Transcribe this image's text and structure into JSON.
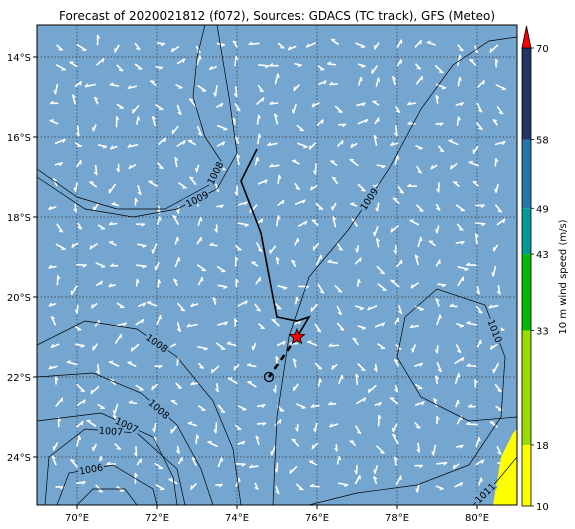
{
  "title": "Forecast of 2020021812 (f072), Sources: GDACS (TC track), GFS (Meteo)",
  "map": {
    "lon_range": [
      69,
      81
    ],
    "lat_range": [
      -25.2,
      -13.2
    ],
    "ocean_color": "#74a6cf",
    "x_ticks": [
      {
        "value": 70,
        "label": "70°E"
      },
      {
        "value": 72,
        "label": "72°E"
      },
      {
        "value": 74,
        "label": "74°E"
      },
      {
        "value": 76,
        "label": "76°E"
      },
      {
        "value": 78,
        "label": "78°E"
      },
      {
        "value": 80,
        "label": "80°E"
      }
    ],
    "y_ticks": [
      {
        "value": -14,
        "label": "14°S"
      },
      {
        "value": -16,
        "label": "16°S"
      },
      {
        "value": -18,
        "label": "18°S"
      },
      {
        "value": -20,
        "label": "20°S"
      },
      {
        "value": -22,
        "label": "22°S"
      },
      {
        "value": -24,
        "label": "24°S"
      }
    ],
    "gridlines": true
  },
  "isobars": [
    {
      "value": 1008,
      "label": "1008",
      "points": [
        [
          73.2,
          -13.2
        ],
        [
          73.0,
          -14.0
        ],
        [
          72.9,
          -15.0
        ],
        [
          73.2,
          -16.0
        ],
        [
          73.6,
          -16.6
        ],
        [
          73.3,
          -17.2
        ],
        [
          72.2,
          -17.8
        ],
        [
          71.0,
          -17.8
        ],
        [
          70.0,
          -17.5
        ],
        [
          69.0,
          -16.8
        ]
      ]
    },
    {
      "value": 1009,
      "label": "1009",
      "points": [
        [
          69.0,
          -17.0
        ],
        [
          70.2,
          -17.8
        ],
        [
          71.4,
          -18.0
        ],
        [
          72.5,
          -17.8
        ],
        [
          73.5,
          -17.3
        ],
        [
          74.0,
          -16.4
        ],
        [
          73.8,
          -15.0
        ],
        [
          73.5,
          -13.2
        ]
      ]
    },
    {
      "value": 1009,
      "label": "1009",
      "points": [
        [
          74.9,
          -25.2
        ],
        [
          75.0,
          -23.0
        ],
        [
          75.3,
          -21.0
        ],
        [
          75.8,
          -19.5
        ],
        [
          76.8,
          -18.3
        ],
        [
          77.8,
          -16.8
        ],
        [
          78.6,
          -15.3
        ],
        [
          79.4,
          -14.2
        ],
        [
          80.3,
          -13.6
        ],
        [
          81.0,
          -13.5
        ]
      ]
    },
    {
      "value": 1008,
      "label": "1008",
      "points": [
        [
          69.0,
          -21.2
        ],
        [
          70.2,
          -20.6
        ],
        [
          71.5,
          -20.8
        ],
        [
          72.5,
          -21.5
        ],
        [
          73.4,
          -22.6
        ],
        [
          73.9,
          -23.8
        ],
        [
          74.1,
          -25.2
        ]
      ]
    },
    {
      "value": 1008,
      "label": "1008",
      "points": [
        [
          69.0,
          -22.0
        ],
        [
          70.4,
          -21.9
        ],
        [
          71.6,
          -22.4
        ],
        [
          72.5,
          -23.2
        ],
        [
          73.1,
          -24.3
        ],
        [
          73.4,
          -25.2
        ]
      ]
    },
    {
      "value": 1007,
      "label": "1007",
      "points": [
        [
          69.2,
          -25.2
        ],
        [
          69.3,
          -24.0
        ],
        [
          70.2,
          -23.3
        ],
        [
          71.5,
          -23.4
        ],
        [
          72.5,
          -24.3
        ],
        [
          72.7,
          -25.2
        ]
      ]
    },
    {
      "value": 1007,
      "label": "1007",
      "points": [
        [
          69.0,
          -23.1
        ],
        [
          70.6,
          -22.9
        ],
        [
          71.9,
          -23.5
        ],
        [
          72.4,
          -24.5
        ],
        [
          72.5,
          -25.2
        ]
      ]
    },
    {
      "value": 1006,
      "label": "1006",
      "points": [
        [
          69.5,
          -25.2
        ],
        [
          69.8,
          -24.4
        ],
        [
          70.9,
          -24.2
        ],
        [
          71.9,
          -24.8
        ],
        [
          72.0,
          -25.2
        ]
      ]
    },
    {
      "value": 1006,
      "label": "",
      "points": [
        [
          70.0,
          -25.2
        ],
        [
          70.4,
          -24.8
        ],
        [
          71.2,
          -24.8
        ],
        [
          71.5,
          -25.2
        ]
      ]
    },
    {
      "value": 1010,
      "label": "1010",
      "points": [
        [
          75.8,
          -25.2
        ],
        [
          77.0,
          -24.9
        ],
        [
          78.5,
          -24.7
        ],
        [
          79.8,
          -24.2
        ],
        [
          80.6,
          -23.0
        ],
        [
          80.7,
          -21.5
        ],
        [
          80.2,
          -20.2
        ],
        [
          79.0,
          -19.8
        ],
        [
          78.2,
          -20.5
        ],
        [
          78.0,
          -21.5
        ],
        [
          78.6,
          -22.5
        ],
        [
          79.8,
          -23.1
        ],
        [
          81.0,
          -23.0
        ]
      ]
    },
    {
      "value": 1011,
      "label": "1011",
      "points": [
        [
          79.9,
          -25.2
        ],
        [
          80.5,
          -24.6
        ],
        [
          81.0,
          -24.0
        ]
      ]
    }
  ],
  "track": {
    "past": [
      [
        74.5,
        -16.3
      ],
      [
        74.1,
        -17.1
      ],
      [
        74.6,
        -18.4
      ],
      [
        74.9,
        -20.0
      ],
      [
        75.0,
        -20.5
      ],
      [
        75.5,
        -20.6
      ],
      [
        75.8,
        -20.5
      ],
      [
        75.5,
        -21.0
      ]
    ],
    "forecast": [
      [
        75.5,
        -21.0
      ],
      [
        74.8,
        -22.0
      ]
    ],
    "current_position": [
      75.5,
      -21.0
    ],
    "forecast_end": [
      74.8,
      -22.0
    ],
    "track_color": "#000000",
    "marker_color": "#ff0000"
  },
  "colorbar": {
    "title": "10 m wind speed (m/s)",
    "ticks": [
      "10",
      "18",
      "33",
      "43",
      "49",
      "58",
      "70"
    ],
    "segments": [
      {
        "from": 10,
        "to": 18,
        "color": "#ffff00"
      },
      {
        "from": 18,
        "to": 33,
        "color": "#99dd00"
      },
      {
        "from": 33,
        "to": 43,
        "color": "#00bb00"
      },
      {
        "from": 43,
        "to": 49,
        "color": "#009999"
      },
      {
        "from": 49,
        "to": 58,
        "color": "#2277aa"
      },
      {
        "from": 58,
        "to": 70,
        "color": "#223366"
      }
    ],
    "extend_color": "#ff0000"
  },
  "hotspot": {
    "color": "#ffff00",
    "points": [
      [
        80.4,
        -25.2
      ],
      [
        80.6,
        -24.0
      ],
      [
        80.9,
        -23.4
      ],
      [
        81.0,
        -23.3
      ],
      [
        81.0,
        -25.2
      ]
    ]
  },
  "wind_field_description_color": "#ffffff"
}
